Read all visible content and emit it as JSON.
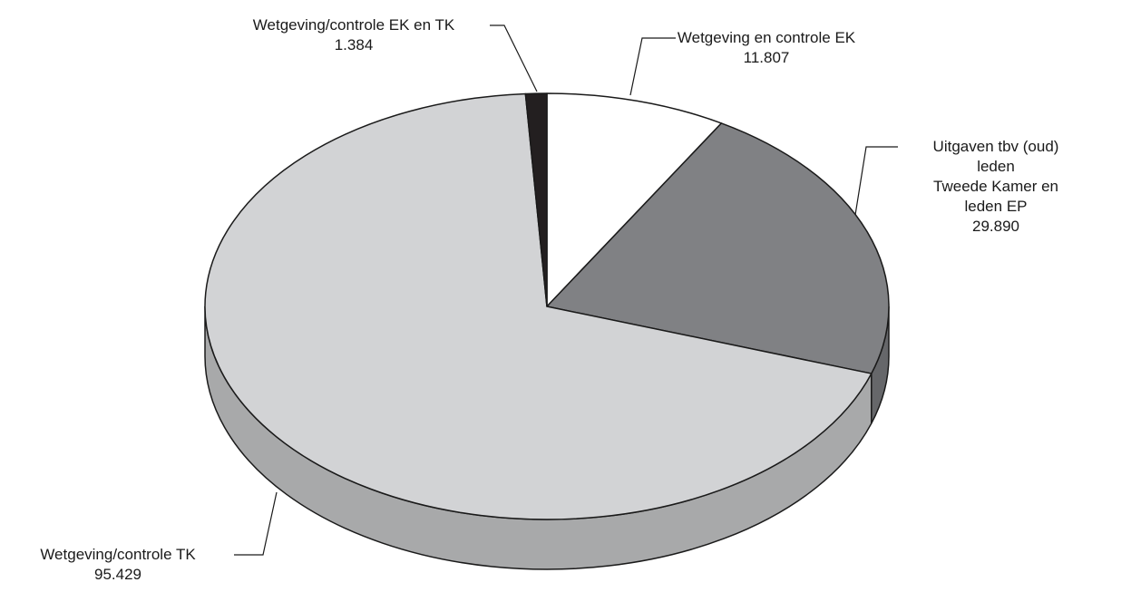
{
  "chart_data": {
    "type": "pie",
    "categories": [
      "Wetgeving en controle EK",
      "Uitgaven tbv (oud) leden\nTweede Kamer en\nleden EP",
      "Wetgeving/controle TK",
      "Wetgeving/controle EK en TK"
    ],
    "values": [
      11807,
      29890,
      95429,
      1384
    ],
    "value_labels": [
      "11.807",
      "29.890",
      "95.429",
      "1.384"
    ],
    "colors": [
      "#ffffff",
      "#808184",
      "#d2d3d5",
      "#231f20"
    ]
  }
}
